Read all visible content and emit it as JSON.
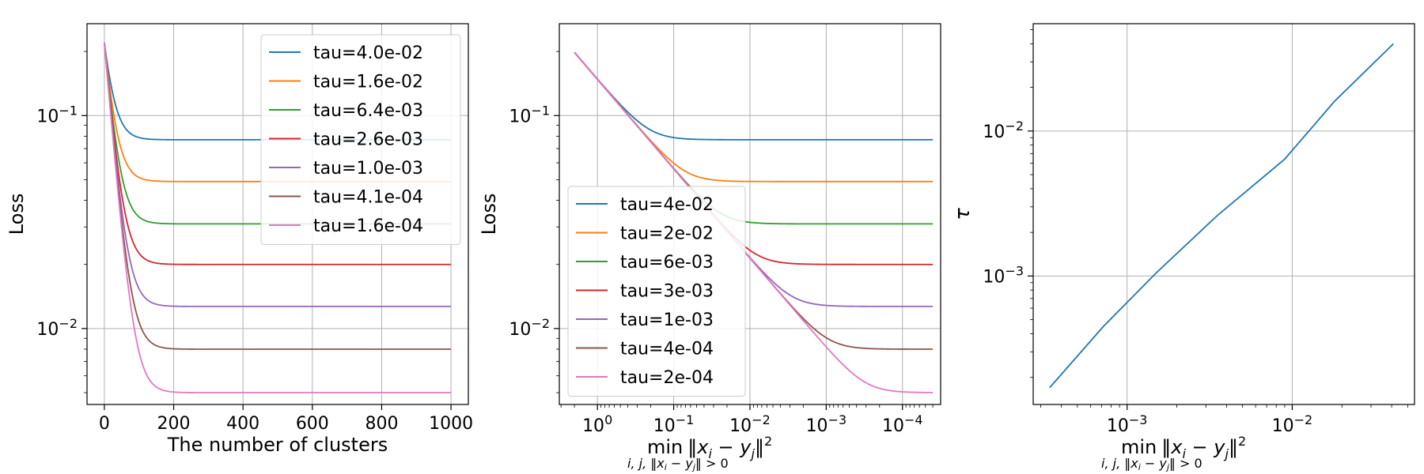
{
  "chart_data": [
    {
      "type": "line",
      "id": "left",
      "ylabel": "Loss",
      "xlabel": "The number of clusters",
      "xscale": "linear",
      "yscale": "log",
      "xlim": [
        -50,
        1050
      ],
      "ylim": [
        0.0044,
        0.27
      ],
      "x_ticks": [
        0,
        200,
        400,
        600,
        800,
        1000
      ],
      "x_tick_labels": [
        "0",
        "200",
        "400",
        "600",
        "800",
        "1000"
      ],
      "y_ticks": [
        0.1,
        0.01
      ],
      "y_tick_labels": [
        {
          "base": "10",
          "exp": "−1"
        },
        {
          "base": "10",
          "exp": "−2"
        }
      ],
      "grid": true,
      "legend_position": "top-right",
      "curve": {
        "x_start": 0,
        "x_end": 1000,
        "start_value": 0.22,
        "decay": 0.0435
      },
      "series": [
        {
          "name": "tau=4.0e-02",
          "color": "#1f77b4",
          "plateau": 0.077
        },
        {
          "name": "tau=1.6e-02",
          "color": "#ff7f0e",
          "plateau": 0.049
        },
        {
          "name": "tau=6.4e-03",
          "color": "#2ca02c",
          "plateau": 0.031
        },
        {
          "name": "tau=2.6e-03",
          "color": "#d62728",
          "plateau": 0.02
        },
        {
          "name": "tau=1.0e-03",
          "color": "#9467bd",
          "plateau": 0.0127
        },
        {
          "name": "tau=4.1e-04",
          "color": "#8c564b",
          "plateau": 0.008
        },
        {
          "name": "tau=1.6e-04",
          "color": "#e377c2",
          "plateau": 0.005
        }
      ]
    },
    {
      "type": "line",
      "id": "middle",
      "ylabel": "Loss",
      "xlabel": {
        "sub": "i, j, ‖x",
        "sub_i": "i",
        "sub_mid": " − y",
        "sub_j": "j",
        "sub_end": "‖ > 0",
        "main": "min",
        "norm": "‖x",
        "i": "i",
        "minus": " − y",
        "j": "j",
        "close": "‖",
        "sq": "2"
      },
      "xscale": "log",
      "x_reversed": true,
      "yscale": "log",
      "xlim": [
        3.16,
        3.16e-05
      ],
      "ylim": [
        0.0044,
        0.27
      ],
      "x_ticks": [
        1,
        0.1,
        0.01,
        0.001,
        0.0001
      ],
      "x_tick_labels": [
        {
          "base": "10",
          "exp": "0"
        },
        {
          "base": "10",
          "exp": "−1"
        },
        {
          "base": "10",
          "exp": "−2"
        },
        {
          "base": "10",
          "exp": "−3"
        },
        {
          "base": "10",
          "exp": "−4"
        }
      ],
      "y_ticks": [
        0.1,
        0.01
      ],
      "y_tick_labels": [
        {
          "base": "10",
          "exp": "−1"
        },
        {
          "base": "10",
          "exp": "−2"
        }
      ],
      "grid": true,
      "legend_position": "bottom-left",
      "curve": {
        "x_start": 2.0,
        "x_end": 4e-05,
        "line_at_1": 0.148,
        "slope": 0.42
      },
      "series": [
        {
          "name": "tau=4e-02",
          "color": "#1f77b4",
          "plateau": 0.077
        },
        {
          "name": "tau=2e-02",
          "color": "#ff7f0e",
          "plateau": 0.049
        },
        {
          "name": "tau=6e-03",
          "color": "#2ca02c",
          "plateau": 0.031
        },
        {
          "name": "tau=3e-03",
          "color": "#d62728",
          "plateau": 0.02
        },
        {
          "name": "tau=1e-03",
          "color": "#9467bd",
          "plateau": 0.0127
        },
        {
          "name": "tau=4e-04",
          "color": "#8c564b",
          "plateau": 0.008
        },
        {
          "name": "tau=2e-04",
          "color": "#e377c2",
          "plateau": 0.005
        }
      ]
    },
    {
      "type": "line",
      "id": "right",
      "ylabel": "τ",
      "xlabel": {
        "sub": "i, j, ‖x",
        "sub_i": "i",
        "sub_mid": " − y",
        "sub_j": "j",
        "sub_end": "‖ > 0",
        "main": "min",
        "norm": "‖x",
        "i": "i",
        "minus": " − y",
        "j": "j",
        "close": "‖",
        "sq": "2"
      },
      "xscale": "log",
      "yscale": "log",
      "xlim": [
        0.00027,
        0.055
      ],
      "ylim": [
        0.00013,
        0.055
      ],
      "x_ticks": [
        0.001,
        0.01
      ],
      "x_tick_labels": [
        {
          "base": "10",
          "exp": "−3"
        },
        {
          "base": "10",
          "exp": "−2"
        }
      ],
      "y_ticks": [
        0.01,
        0.001
      ],
      "y_tick_labels": [
        {
          "base": "10",
          "exp": "−2"
        },
        {
          "base": "10",
          "exp": "−3"
        }
      ],
      "grid": true,
      "series": [
        {
          "name": "",
          "color": "#1f77b4",
          "points": [
            [
              0.00034,
              0.00017
            ],
            [
              0.00072,
              0.00045
            ],
            [
              0.0015,
              0.00105
            ],
            [
              0.0035,
              0.0026
            ],
            [
              0.009,
              0.0064
            ],
            [
              0.018,
              0.016
            ],
            [
              0.041,
              0.04
            ]
          ]
        }
      ]
    }
  ]
}
